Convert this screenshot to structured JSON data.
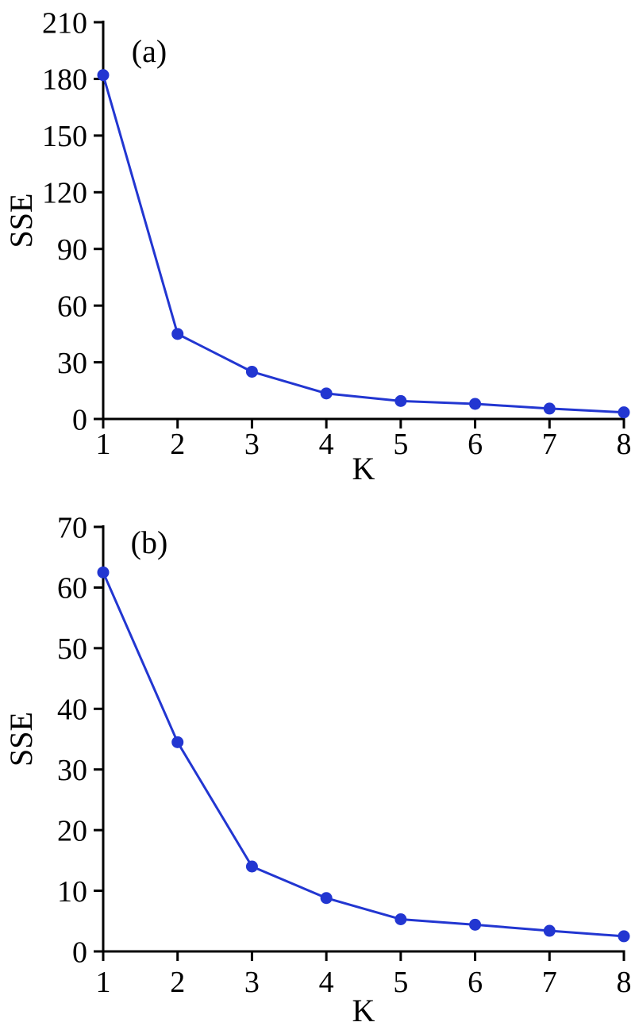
{
  "figure": {
    "background": "#ffffff",
    "num_panels": 2
  },
  "colors": {
    "series_line": "#2236d1",
    "marker_fill": "#2236d1",
    "axis": "#000000",
    "text": "#000000"
  },
  "chart_data": [
    {
      "type": "line",
      "panel_label": "(a)",
      "title": "",
      "xlabel": "K",
      "ylabel": "SSE",
      "x": [
        1,
        2,
        3,
        4,
        5,
        6,
        7,
        8
      ],
      "values": [
        182,
        45,
        25,
        13.5,
        9.5,
        8,
        5.5,
        3.5
      ],
      "xlim": [
        1,
        8
      ],
      "ylim": [
        0,
        210
      ],
      "xticks": [
        1,
        2,
        3,
        4,
        5,
        6,
        7,
        8
      ],
      "yticks": [
        0,
        30,
        60,
        90,
        120,
        150,
        180,
        210
      ],
      "grid": false,
      "legend": null,
      "marker": "circle"
    },
    {
      "type": "line",
      "panel_label": "(b)",
      "title": "",
      "xlabel": "K",
      "ylabel": "SSE",
      "x": [
        1,
        2,
        3,
        4,
        5,
        6,
        7,
        8
      ],
      "values": [
        62.5,
        34.5,
        14,
        8.8,
        5.3,
        4.4,
        3.4,
        2.5
      ],
      "xlim": [
        1,
        8
      ],
      "ylim": [
        0,
        70
      ],
      "xticks": [
        1,
        2,
        3,
        4,
        5,
        6,
        7,
        8
      ],
      "yticks": [
        0,
        10,
        20,
        30,
        40,
        50,
        60,
        70
      ],
      "grid": false,
      "legend": null,
      "marker": "circle"
    }
  ]
}
